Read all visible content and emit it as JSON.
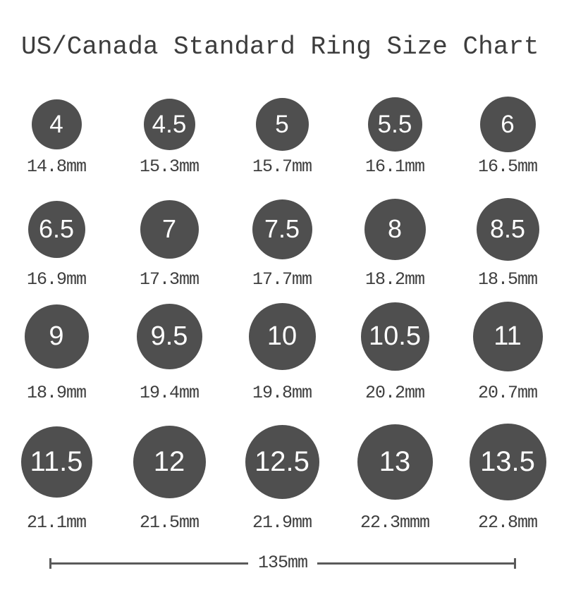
{
  "title": "US/Canada Standard Ring Size Chart",
  "rings": [
    {
      "size": "4",
      "diameter": "14.8mm"
    },
    {
      "size": "4.5",
      "diameter": "15.3mm"
    },
    {
      "size": "5",
      "diameter": "15.7mm"
    },
    {
      "size": "5.5",
      "diameter": "16.1mm"
    },
    {
      "size": "6",
      "diameter": "16.5mm"
    },
    {
      "size": "6.5",
      "diameter": "16.9mm"
    },
    {
      "size": "7",
      "diameter": "17.3mm"
    },
    {
      "size": "7.5",
      "diameter": "17.7mm"
    },
    {
      "size": "8",
      "diameter": "18.2mm"
    },
    {
      "size": "8.5",
      "diameter": "18.5mm"
    },
    {
      "size": "9",
      "diameter": "18.9mm"
    },
    {
      "size": "9.5",
      "diameter": "19.4mm"
    },
    {
      "size": "10",
      "diameter": "19.8mm"
    },
    {
      "size": "10.5",
      "diameter": "20.2mm"
    },
    {
      "size": "11",
      "diameter": "20.7mm"
    },
    {
      "size": "11.5",
      "diameter": "21.1mm"
    },
    {
      "size": "12",
      "diameter": "21.5mm"
    },
    {
      "size": "12.5",
      "diameter": "21.9mm"
    },
    {
      "size": "13",
      "diameter": "22.3mmm"
    },
    {
      "size": "13.5",
      "diameter": "22.8mm"
    }
  ],
  "scale_bar": {
    "label": "135mm"
  },
  "colors": {
    "circle_fill": "#4f4f4f",
    "circle_text": "#ffffff",
    "label_text": "#3e3e3e",
    "title_text": "#3d3d3d",
    "scale_line": "#5a5a5a",
    "background": "#ffffff"
  }
}
